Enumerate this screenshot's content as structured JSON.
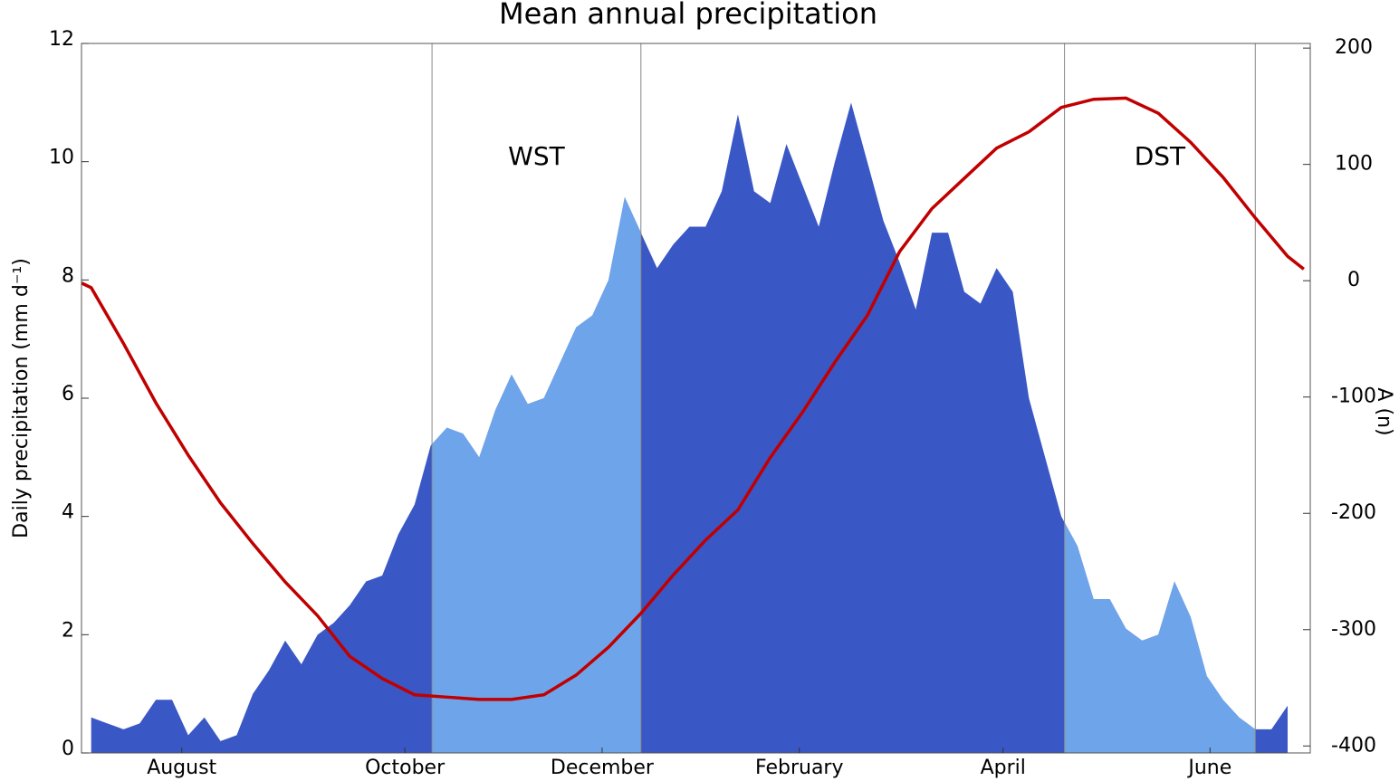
{
  "chart_data": {
    "type": "area",
    "title": "Mean annual precipitation",
    "ylabel": "Daily precipitation  (mm d⁻¹)",
    "y2label": "A (n)",
    "xlim": [
      0,
      380
    ],
    "xticks": [
      {
        "value": 31,
        "label": "August"
      },
      {
        "value": 100,
        "label": "October"
      },
      {
        "value": 161,
        "label": "December"
      },
      {
        "value": 222,
        "label": "February"
      },
      {
        "value": 285,
        "label": "April"
      },
      {
        "value": 349,
        "label": "June"
      }
    ],
    "ylim": [
      0,
      12
    ],
    "yticks": [
      0,
      2,
      4,
      6,
      8,
      10,
      12
    ],
    "y2lim": [
      -406,
      204
    ],
    "y2ticks": [
      -400,
      -300,
      -200,
      -100,
      0,
      100,
      200
    ],
    "periods": [
      [
        108.4,
        173
      ],
      [
        304,
        363
      ]
    ],
    "annotations": [
      "WST",
      "DST"
    ],
    "series": [
      {
        "type": "area",
        "color": "#3a57c6",
        "shade_color": "#6ea5ea",
        "x": [
          3,
          8,
          13,
          18,
          23,
          28,
          33,
          38,
          43,
          48,
          53,
          58,
          63,
          68,
          73,
          78,
          83,
          88,
          93,
          98,
          103,
          108,
          113,
          118,
          123,
          128,
          133,
          138,
          143,
          148,
          153,
          158,
          163,
          168,
          173,
          178,
          183,
          188,
          193,
          198,
          203,
          208,
          213,
          218,
          223,
          228,
          233,
          238,
          243,
          248,
          253,
          258,
          263,
          268,
          273,
          278,
          283,
          288,
          293,
          298,
          303,
          308,
          313,
          318,
          323,
          328,
          333,
          338,
          343,
          348,
          353,
          358,
          363,
          368,
          373
        ],
        "values": [
          0.6,
          0.5,
          0.4,
          0.5,
          0.9,
          0.9,
          0.3,
          0.6,
          0.2,
          0.3,
          1.0,
          1.4,
          1.9,
          1.5,
          2.0,
          2.2,
          2.5,
          2.9,
          3.0,
          3.7,
          4.2,
          5.2,
          5.5,
          5.4,
          5.0,
          5.8,
          6.4,
          5.9,
          6.0,
          6.6,
          7.2,
          7.4,
          8.0,
          9.4,
          8.8,
          8.2,
          8.6,
          8.9,
          8.9,
          9.5,
          10.8,
          9.5,
          9.3,
          10.3,
          9.6,
          8.9,
          10.0,
          11.0,
          10.0,
          9.0,
          8.3,
          7.5,
          8.8,
          8.8,
          7.8,
          7.6,
          8.2,
          7.8,
          6.0,
          5.0,
          4.0,
          3.5,
          2.6,
          2.6,
          2.1,
          1.9,
          2.0,
          2.9,
          2.3,
          1.3,
          0.9,
          0.6,
          0.4,
          0.4,
          0.8
        ]
      },
      {
        "type": "line",
        "axis": "y2",
        "color": "#c00000",
        "x": [
          0,
          3,
          13,
          23,
          33,
          43,
          53,
          63,
          73,
          83,
          93,
          103,
          113,
          123,
          133,
          143,
          153,
          163,
          173,
          183,
          193,
          203,
          213,
          223,
          233,
          243,
          253,
          263,
          273,
          283,
          293,
          303,
          313,
          323,
          333,
          343,
          353,
          363,
          373,
          378
        ],
        "values": [
          -2,
          -6,
          -54,
          -105,
          -150,
          -191,
          -226,
          -259,
          -288,
          -323,
          -342,
          -356,
          -358,
          -360,
          -360,
          -356,
          -339,
          -315,
          -286,
          -253,
          -223,
          -197,
          -152,
          -113,
          -70,
          -30,
          25,
          62,
          88,
          114,
          128,
          149,
          156,
          157,
          144,
          119,
          89,
          54,
          21,
          10
        ]
      }
    ]
  }
}
